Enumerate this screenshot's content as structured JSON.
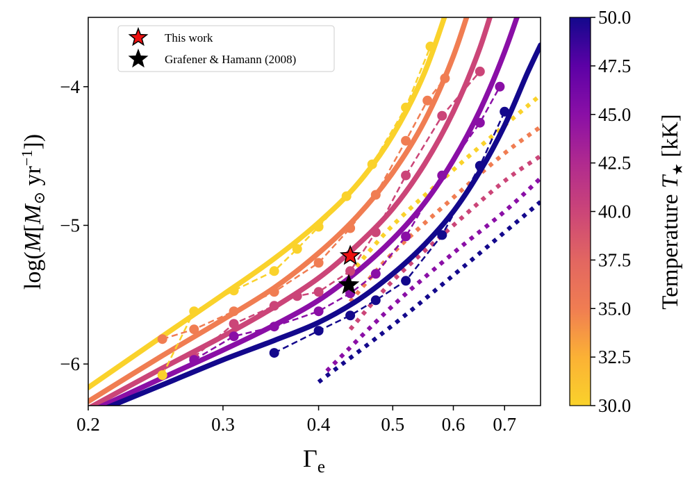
{
  "chart_data": {
    "type": "line",
    "x_scale": "log",
    "xlim": [
      0.2,
      0.78
    ],
    "ylim": [
      -6.3,
      -3.5
    ],
    "x_ticks": [
      0.2,
      0.3,
      0.4,
      0.5,
      0.6,
      0.7
    ],
    "x_tick_labels": [
      "0.2",
      "0.3",
      "0.4",
      "0.5",
      "0.6",
      "0.7"
    ],
    "y_ticks": [
      -6,
      -5,
      -4
    ],
    "y_tick_labels": [
      "−6",
      "−5",
      "−4"
    ],
    "xlabel_main": "Γ",
    "xlabel_sub": "e",
    "ylabel": "log(Ṁ [M⊙ yr⁻¹])",
    "ylabel_parts": {
      "prefix": "log(",
      "mdot": "M",
      "bracket_open": "[",
      "msun": "M",
      "sun_symbol": "⊙",
      "unit": " yr",
      "exponent": "−1",
      "close": "])"
    },
    "colorbar": {
      "label_prefix": "Temperature ",
      "label_symbol": "T",
      "label_sub": "★",
      "label_unit": " [kK]",
      "range": [
        30.0,
        50.0
      ],
      "ticks": [
        30.0,
        32.5,
        35.0,
        37.5,
        40.0,
        42.5,
        45.0,
        47.5,
        50.0
      ],
      "tick_labels": [
        "30.0",
        "32.5",
        "35.0",
        "37.5",
        "40.0",
        "42.5",
        "45.0",
        "47.5",
        "50.0"
      ]
    },
    "legend": [
      {
        "label": "This work",
        "marker": "star",
        "color": "#ee1111"
      },
      {
        "label": "Grafener & Hamann (2008)",
        "marker": "star",
        "color": "#000000"
      }
    ],
    "stars": [
      {
        "name": "This work",
        "x": 0.44,
        "y": -5.22,
        "color": "#ee1111"
      },
      {
        "name": "Grafener & Hamann (2008)",
        "x": 0.438,
        "y": -5.43,
        "color": "#000000"
      }
    ],
    "series": [
      {
        "temperature": 30,
        "color": "#fad22b",
        "fit": {
          "x": [
            0.2,
            0.25,
            0.3,
            0.35,
            0.4,
            0.45,
            0.5,
            0.55,
            0.6,
            0.62
          ],
          "y": [
            -6.17,
            -5.8,
            -5.5,
            -5.24,
            -4.98,
            -4.7,
            -4.35,
            -3.9,
            -3.3,
            -3.0
          ]
        },
        "points": {
          "x": [
            0.25,
            0.275,
            0.31,
            0.35,
            0.375,
            0.4,
            0.435,
            0.47,
            0.52,
            0.56
          ],
          "y": [
            -6.08,
            -5.62,
            -5.47,
            -5.33,
            -5.17,
            -5.01,
            -4.79,
            -4.56,
            -4.15,
            -3.71
          ]
        },
        "wind": {
          "x": [
            0.44,
            0.5,
            0.6,
            0.7,
            0.78
          ],
          "y": [
            -5.35,
            -5.0,
            -4.6,
            -4.28,
            -4.06
          ]
        }
      },
      {
        "temperature": 35,
        "color": "#f07d52",
        "fit": {
          "x": [
            0.2,
            0.25,
            0.3,
            0.35,
            0.4,
            0.45,
            0.5,
            0.55,
            0.6,
            0.65,
            0.68
          ],
          "y": [
            -6.27,
            -5.94,
            -5.68,
            -5.45,
            -5.2,
            -4.93,
            -4.62,
            -4.25,
            -3.78,
            -3.2,
            -2.9
          ]
        },
        "points": {
          "x": [
            0.25,
            0.275,
            0.31,
            0.35,
            0.4,
            0.44,
            0.475,
            0.52,
            0.555,
            0.585
          ],
          "y": [
            -5.82,
            -5.75,
            -5.62,
            -5.48,
            -5.27,
            -5.02,
            -4.78,
            -4.39,
            -4.1,
            -3.94
          ]
        },
        "wind": {
          "x": [
            0.44,
            0.5,
            0.6,
            0.7,
            0.78
          ],
          "y": [
            -5.55,
            -5.2,
            -4.8,
            -4.48,
            -4.29
          ]
        }
      },
      {
        "temperature": 40,
        "color": "#cb4578",
        "fit": {
          "x": [
            0.2,
            0.25,
            0.3,
            0.35,
            0.4,
            0.45,
            0.5,
            0.55,
            0.6,
            0.65,
            0.7,
            0.73
          ],
          "y": [
            -6.32,
            -6.03,
            -5.8,
            -5.59,
            -5.38,
            -5.14,
            -4.88,
            -4.56,
            -4.18,
            -3.72,
            -3.15,
            -2.85
          ]
        },
        "points": {
          "x": [
            0.275,
            0.31,
            0.35,
            0.375,
            0.4,
            0.44,
            0.475,
            0.52,
            0.58,
            0.65
          ],
          "y": [
            -5.95,
            -5.71,
            -5.58,
            -5.51,
            -5.48,
            -5.33,
            -5.05,
            -4.64,
            -4.21,
            -3.89
          ]
        },
        "wind": {
          "x": [
            0.44,
            0.5,
            0.6,
            0.7,
            0.78
          ],
          "y": [
            -5.75,
            -5.4,
            -5.0,
            -4.68,
            -4.5
          ]
        }
      },
      {
        "temperature": 45,
        "color": "#8a0fa6",
        "fit": {
          "x": [
            0.2,
            0.25,
            0.3,
            0.35,
            0.4,
            0.45,
            0.5,
            0.55,
            0.6,
            0.65,
            0.7,
            0.75,
            0.78
          ],
          "y": [
            -6.35,
            -6.1,
            -5.9,
            -5.72,
            -5.54,
            -5.33,
            -5.1,
            -4.84,
            -4.53,
            -4.17,
            -3.75,
            -3.27,
            -2.95
          ]
        },
        "points": {
          "x": [
            0.275,
            0.31,
            0.35,
            0.4,
            0.44,
            0.475,
            0.52,
            0.58,
            0.65,
            0.69
          ],
          "y": [
            -5.97,
            -5.8,
            -5.73,
            -5.62,
            -5.49,
            -5.35,
            -5.08,
            -4.64,
            -4.26,
            -4.0
          ]
        },
        "wind": {
          "x": [
            0.41,
            0.5,
            0.6,
            0.7,
            0.78
          ],
          "y": [
            -6.05,
            -5.58,
            -5.2,
            -4.9,
            -4.66
          ]
        }
      },
      {
        "temperature": 50,
        "color": "#13088c",
        "fit": {
          "x": [
            0.2,
            0.25,
            0.3,
            0.35,
            0.4,
            0.45,
            0.5,
            0.55,
            0.6,
            0.65,
            0.7,
            0.75,
            0.78
          ],
          "y": [
            -6.37,
            -6.15,
            -5.97,
            -5.83,
            -5.7,
            -5.54,
            -5.35,
            -5.14,
            -4.9,
            -4.61,
            -4.28,
            -3.9,
            -3.7
          ]
        },
        "points": {
          "x": [
            0.35,
            0.4,
            0.44,
            0.475,
            0.52,
            0.58,
            0.65,
            0.7
          ],
          "y": [
            -5.92,
            -5.76,
            -5.65,
            -5.54,
            -5.4,
            -5.07,
            -4.57,
            -4.18
          ]
        },
        "wind": {
          "x": [
            0.4,
            0.5,
            0.6,
            0.7,
            0.78
          ],
          "y": [
            -6.13,
            -5.72,
            -5.36,
            -5.05,
            -4.83
          ]
        }
      }
    ]
  }
}
